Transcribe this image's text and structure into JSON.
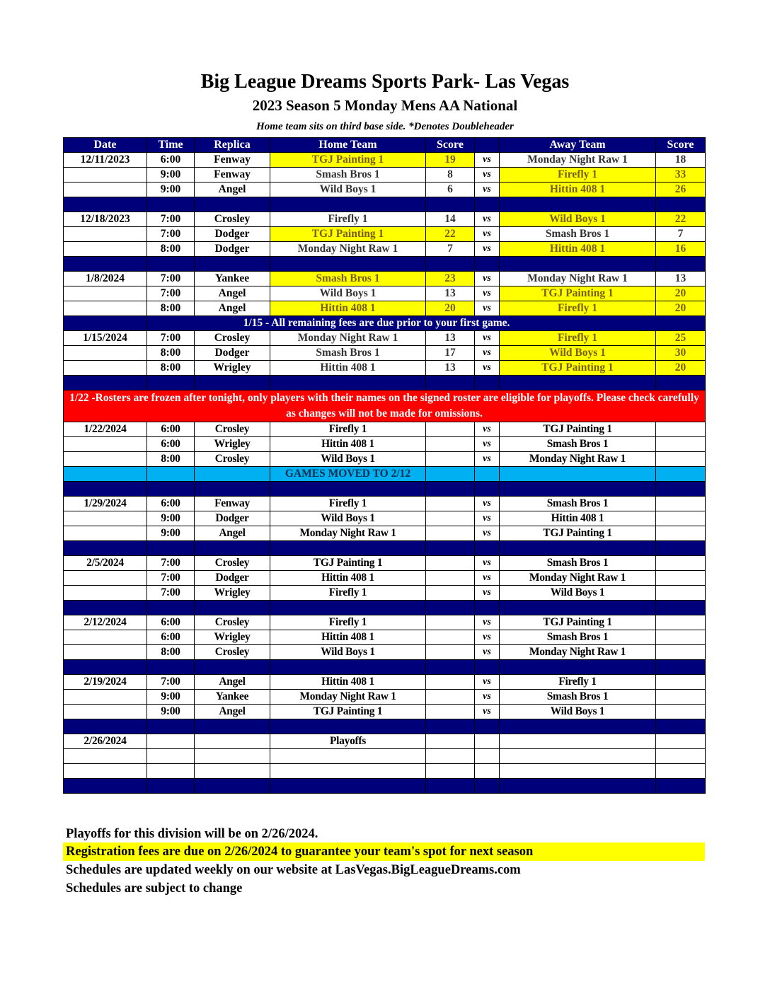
{
  "title": "Big League Dreams Sports Park- Las Vegas",
  "subtitle": "2023 Season 5 Monday Mens AA National",
  "note": "Home team sits on third base side.  *Denotes Doubleheader",
  "headers": [
    "Date",
    "Time",
    "Replica",
    "Home Team",
    "Score",
    "",
    "Away Team",
    "Score"
  ],
  "colors": {
    "header": "#00007a",
    "winner": "#ffff00",
    "notice_red": "#ff0000",
    "notice_blue": "#00b0f0"
  },
  "rows": [
    {
      "type": "game",
      "date": "12/11/2023",
      "time": "6:00",
      "field": "Fenway",
      "home": "TGJ Painting 1",
      "hs": "19",
      "away": "Monday Night Raw 1",
      "as": "18",
      "winner": "home"
    },
    {
      "type": "game",
      "date": "",
      "time": "9:00",
      "field": "Fenway",
      "home": "Smash Bros 1",
      "hs": "8",
      "away": "Firefly 1",
      "as": "33",
      "winner": "away"
    },
    {
      "type": "game",
      "date": "",
      "time": "9:00",
      "field": "Angel",
      "home": "Wild Boys 1",
      "hs": "6",
      "away": "Hittin 408 1",
      "as": "26",
      "winner": "away"
    },
    {
      "type": "navy"
    },
    {
      "type": "game",
      "date": "12/18/2023",
      "time": "7:00",
      "field": "Crosley",
      "home": "Firefly 1",
      "hs": "14",
      "away": "Wild Boys 1",
      "as": "22",
      "winner": "away"
    },
    {
      "type": "game",
      "date": "",
      "time": "7:00",
      "field": "Dodger",
      "home": "TGJ Painting 1",
      "hs": "22",
      "away": "Smash Bros 1",
      "as": "7",
      "winner": "home"
    },
    {
      "type": "game",
      "date": "",
      "time": "8:00",
      "field": "Dodger",
      "home": "Monday Night Raw 1",
      "hs": "7",
      "away": "Hittin 408 1",
      "as": "16",
      "winner": "away"
    },
    {
      "type": "navy"
    },
    {
      "type": "game",
      "date": "1/8/2024",
      "time": "7:00",
      "field": "Yankee",
      "home": "Smash Bros 1",
      "hs": "23",
      "away": "Monday Night Raw 1",
      "as": "13",
      "winner": "home"
    },
    {
      "type": "game",
      "date": "",
      "time": "7:00",
      "field": "Angel",
      "home": "Wild Boys 1",
      "hs": "13",
      "away": "TGJ Painting 1",
      "as": "20",
      "winner": "away"
    },
    {
      "type": "game",
      "date": "",
      "time": "8:00",
      "field": "Angel",
      "home": "Hittin 408 1",
      "hs": "20",
      "away": "Firefly 1",
      "as": "20",
      "winner": "both"
    },
    {
      "type": "fee",
      "text": "1/15 - All remaining fees are due prior to your first game."
    },
    {
      "type": "game",
      "date": "1/15/2024",
      "time": "7:00",
      "field": "Crosley",
      "home": "Monday Night Raw 1",
      "hs": "13",
      "away": "Firefly 1",
      "as": "25",
      "winner": "away"
    },
    {
      "type": "game",
      "date": "",
      "time": "8:00",
      "field": "Dodger",
      "home": "Smash Bros 1",
      "hs": "17",
      "away": "Wild Boys 1",
      "as": "30",
      "winner": "away"
    },
    {
      "type": "game",
      "date": "",
      "time": "8:00",
      "field": "Wrigley",
      "home": "Hittin 408 1",
      "hs": "13",
      "away": "TGJ Painting 1",
      "as": "20",
      "winner": "away"
    },
    {
      "type": "navy"
    },
    {
      "type": "red",
      "text": "1/22 -Rosters are frozen after tonight, only players with their names on the signed roster are eligible for playoffs. Please check carefully as changes will not be made for omissions."
    },
    {
      "type": "sched",
      "date": "1/22/2024",
      "time": "6:00",
      "field": "Crosley",
      "home": "Firefly 1",
      "away": "TGJ Painting 1"
    },
    {
      "type": "sched",
      "date": "",
      "time": "6:00",
      "field": "Wrigley",
      "home": "Hittin 408 1",
      "away": "Smash Bros 1"
    },
    {
      "type": "sched",
      "date": "",
      "time": "8:00",
      "field": "Crosley",
      "home": "Wild Boys 1",
      "away": "Monday Night Raw 1"
    },
    {
      "type": "blue",
      "text": "GAMES MOVED TO 2/12"
    },
    {
      "type": "navy"
    },
    {
      "type": "sched",
      "date": "1/29/2024",
      "time": "6:00",
      "field": "Fenway",
      "home": "Firefly 1",
      "away": "Smash Bros 1"
    },
    {
      "type": "sched",
      "date": "",
      "time": "9:00",
      "field": "Dodger",
      "home": "Wild Boys 1",
      "away": "Hittin 408 1"
    },
    {
      "type": "sched",
      "date": "",
      "time": "9:00",
      "field": "Angel",
      "home": "Monday Night Raw 1",
      "away": "TGJ Painting 1"
    },
    {
      "type": "navy"
    },
    {
      "type": "sched",
      "date": "2/5/2024",
      "time": "7:00",
      "field": "Crosley",
      "home": "TGJ Painting 1",
      "away": "Smash Bros 1"
    },
    {
      "type": "sched",
      "date": "",
      "time": "7:00",
      "field": "Dodger",
      "home": "Hittin 408 1",
      "away": "Monday Night Raw 1"
    },
    {
      "type": "sched",
      "date": "",
      "time": "7:00",
      "field": "Wrigley",
      "home": "Firefly 1",
      "away": "Wild Boys 1"
    },
    {
      "type": "navy"
    },
    {
      "type": "sched",
      "date": "2/12/2024",
      "time": "6:00",
      "field": "Crosley",
      "home": "Firefly 1",
      "away": "TGJ Painting 1"
    },
    {
      "type": "sched",
      "date": "",
      "time": "6:00",
      "field": "Wrigley",
      "home": "Hittin 408 1",
      "away": "Smash Bros 1"
    },
    {
      "type": "sched",
      "date": "",
      "time": "8:00",
      "field": "Crosley",
      "home": "Wild Boys 1",
      "away": "Monday Night Raw 1"
    },
    {
      "type": "navy"
    },
    {
      "type": "sched",
      "date": "2/19/2024",
      "time": "7:00",
      "field": "Angel",
      "home": "Hittin 408 1",
      "away": "Firefly 1"
    },
    {
      "type": "sched",
      "date": "",
      "time": "9:00",
      "field": "Yankee",
      "home": "Monday Night Raw 1",
      "away": "Smash Bros 1"
    },
    {
      "type": "sched",
      "date": "",
      "time": "9:00",
      "field": "Angel",
      "home": "TGJ Painting 1",
      "away": "Wild Boys 1"
    },
    {
      "type": "navy"
    },
    {
      "type": "playoff",
      "date": "2/26/2024",
      "home": "Playoffs"
    },
    {
      "type": "empty"
    },
    {
      "type": "empty"
    },
    {
      "type": "navy"
    }
  ],
  "vs": "vs",
  "footer": [
    "Playoffs for this division will be on 2/26/2024.",
    "Registration fees are due on 2/26/2024 to guarantee your team's spot for next season",
    "Schedules are updated weekly on our website at LasVegas.BigLeagueDreams.com",
    "Schedules are subject to change"
  ]
}
